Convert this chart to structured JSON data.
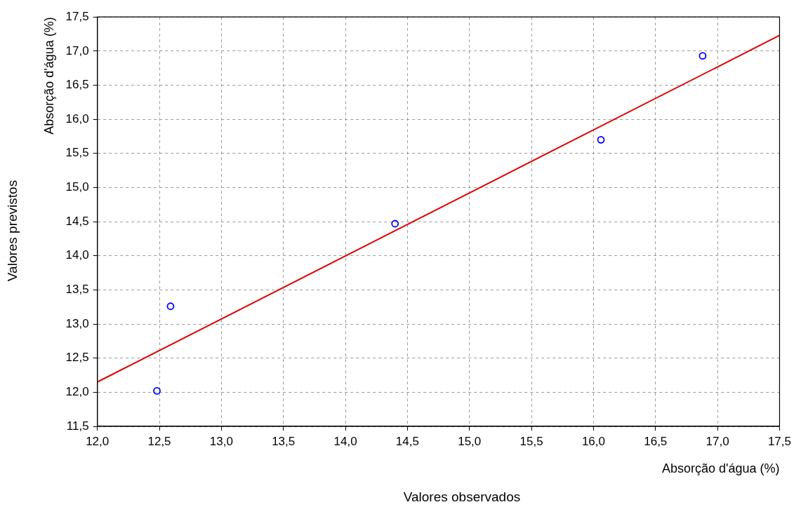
{
  "chart_data": {
    "type": "scatter",
    "xlabel": "Absorção d'água (%)",
    "ylabel": "Absorção d'água (%)",
    "annotations": [
      "Valores observados",
      "Valores previstos"
    ],
    "series": [
      {
        "type": "scatter",
        "color": "#0000ff",
        "x": [
          12.48,
          12.59,
          14.4,
          16.06,
          16.88
        ],
        "values": [
          12.02,
          13.26,
          14.47,
          15.7,
          16.93
        ],
        "marker": "circle"
      },
      {
        "type": "line",
        "color": "#e00000",
        "x": [
          12.0,
          17.5
        ],
        "values": [
          12.15,
          17.23
        ],
        "marker": "none",
        "line_style": "solid"
      }
    ],
    "xlim": [
      12.0,
      17.5
    ],
    "ylim": [
      11.5,
      17.5
    ],
    "xticks": [
      {
        "value": 12.0,
        "label": "12,0"
      },
      {
        "value": 12.5,
        "label": "12,5"
      },
      {
        "value": 13.0,
        "label": "13,0"
      },
      {
        "value": 13.5,
        "label": "13,5"
      },
      {
        "value": 14.0,
        "label": "14,0"
      },
      {
        "value": 14.5,
        "label": "14,5"
      },
      {
        "value": 15.0,
        "label": "15,0"
      },
      {
        "value": 15.5,
        "label": "15,5"
      },
      {
        "value": 16.0,
        "label": "16,0"
      },
      {
        "value": 16.5,
        "label": "16,5"
      },
      {
        "value": 17.0,
        "label": "17,0"
      },
      {
        "value": 17.5,
        "label": "17,5"
      }
    ],
    "yticks": [
      {
        "value": 11.5,
        "label": "11,5"
      },
      {
        "value": 12.0,
        "label": "12,0"
      },
      {
        "value": 12.5,
        "label": "12,5"
      },
      {
        "value": 13.0,
        "label": "13,0"
      },
      {
        "value": 13.5,
        "label": "13,5"
      },
      {
        "value": 14.0,
        "label": "14,0"
      },
      {
        "value": 14.5,
        "label": "14,5"
      },
      {
        "value": 15.0,
        "label": "15,0"
      },
      {
        "value": 15.5,
        "label": "15,5"
      },
      {
        "value": 16.0,
        "label": "16,0"
      },
      {
        "value": 16.5,
        "label": "16,5"
      },
      {
        "value": 17.0,
        "label": "17,0"
      },
      {
        "value": 17.5,
        "label": "17,5"
      }
    ],
    "grid": true,
    "legend": false
  }
}
